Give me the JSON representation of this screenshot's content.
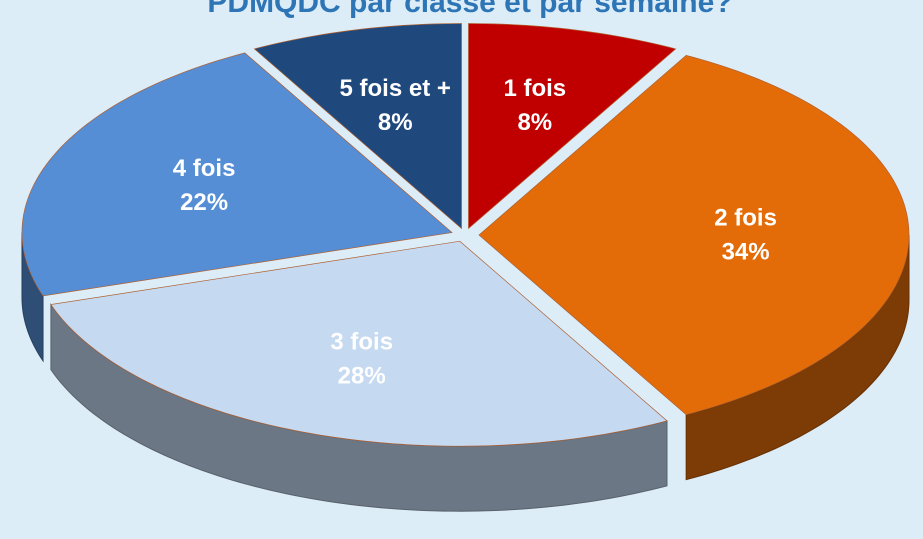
{
  "chart_data": {
    "type": "pie",
    "title": "PDMQDC par classe et  par semaine?",
    "categories": [
      "1 fois",
      "2 fois",
      "3 fois",
      "4 fois",
      "5 fois et +"
    ],
    "values": [
      8,
      34,
      28,
      22,
      8
    ],
    "value_labels": [
      "8%",
      "34%",
      "28%",
      "22%",
      "8%"
    ],
    "colors": [
      "#c00000",
      "#e36c09",
      "#c5d9f1",
      "#558ed5",
      "#1f497d"
    ]
  }
}
